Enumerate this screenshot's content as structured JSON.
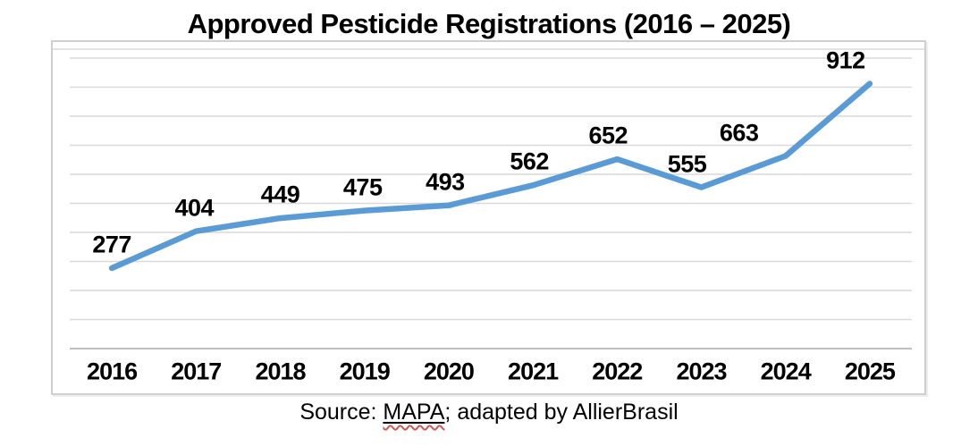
{
  "title": "Approved Pesticide Registrations (2016 – 2025)",
  "source": {
    "prefix": "Source: ",
    "highlight": "MAPA",
    "suffix": "; adapted by AllierBrasil"
  },
  "colors": {
    "line": "#5B9BD5",
    "gridline": "#D9D9D9",
    "axis_line": "#BFBFBF",
    "frame_border": "#D0CECE",
    "text": "#000000",
    "spellcheck_squiggle": "#CC5A54"
  },
  "chart_data": {
    "type": "line",
    "title": "Approved Pesticide Registrations (2016 – 2025)",
    "categories": [
      "2016",
      "2017",
      "2018",
      "2019",
      "2020",
      "2021",
      "2022",
      "2023",
      "2024",
      "2025"
    ],
    "values": [
      277,
      404,
      449,
      475,
      493,
      562,
      652,
      555,
      663,
      912
    ],
    "xlabel": "",
    "ylabel": "",
    "ylim": [
      0,
      1000
    ],
    "gridlines": "horizontal every 100, light gray, no y-axis tick labels",
    "legend": "none",
    "data_labels": "values shown bold above each point",
    "line_style": "thick solid blue, no markers"
  }
}
